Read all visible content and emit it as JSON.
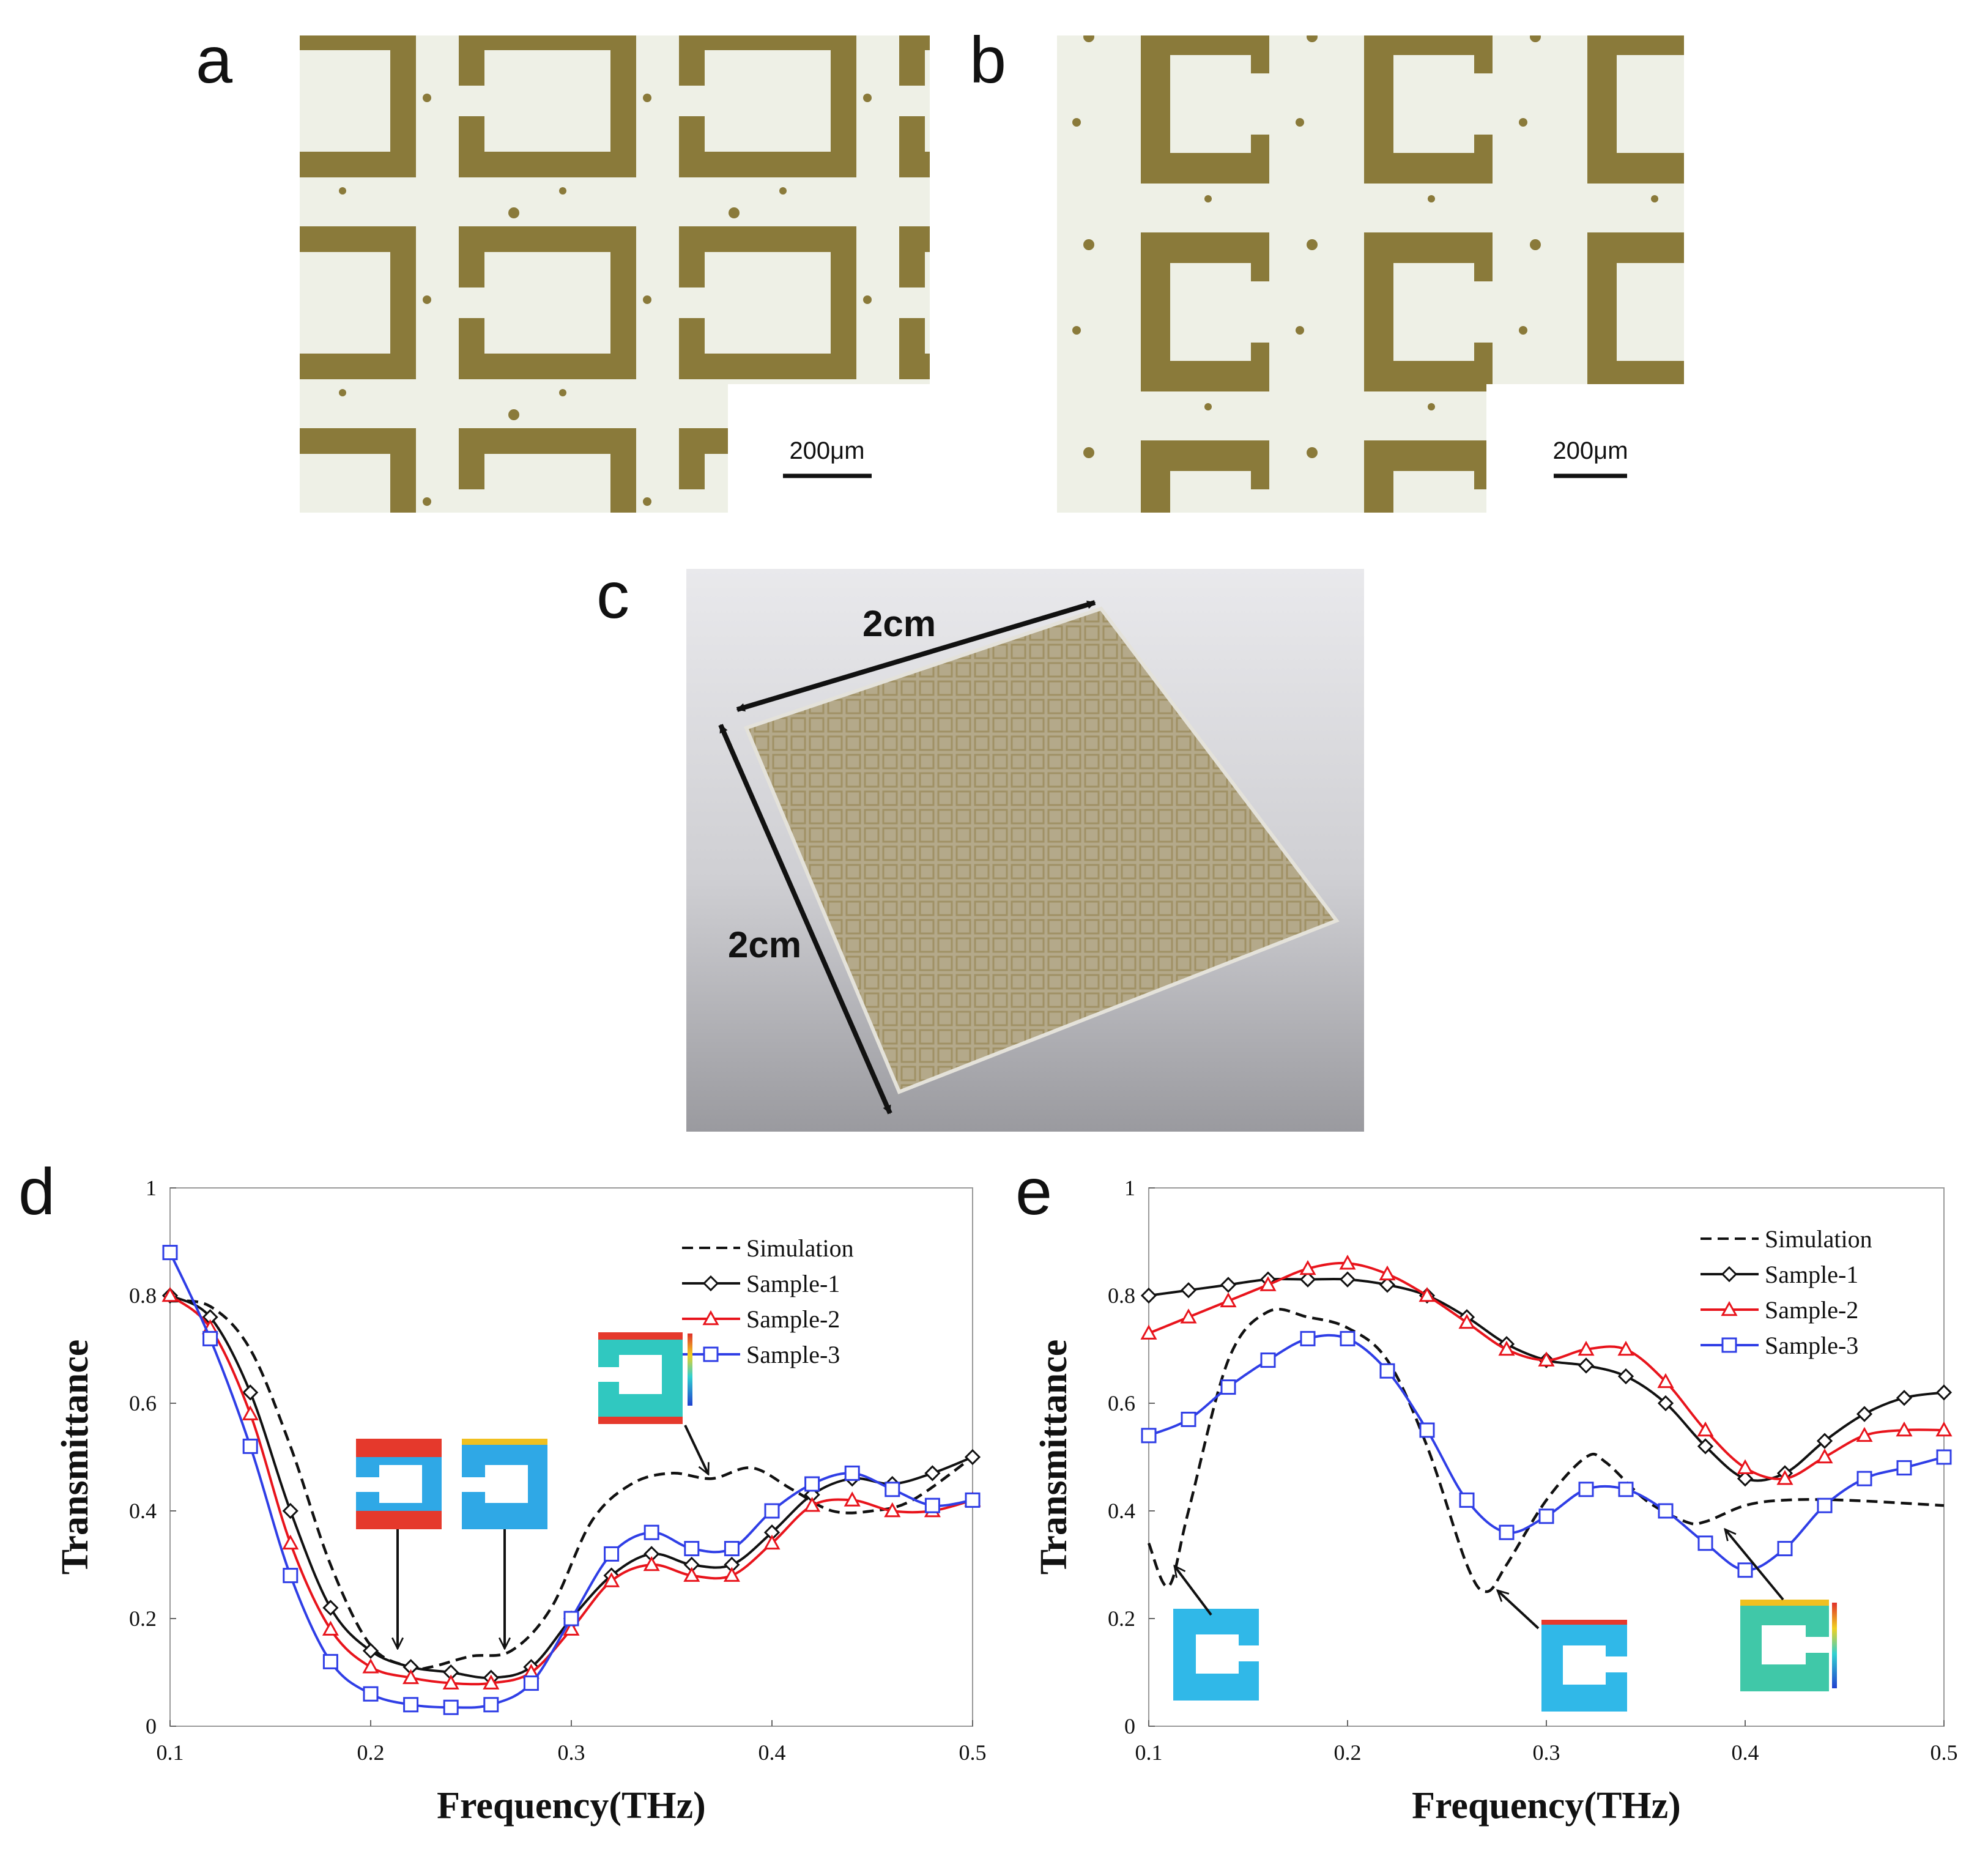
{
  "figure": {
    "panels": {
      "a": {
        "label": "a",
        "scale_bar": "200μm"
      },
      "b": {
        "label": "b",
        "scale_bar": "200μm"
      },
      "c": {
        "label": "c",
        "dim_top": "2cm",
        "dim_side": "2cm"
      },
      "d": {
        "label": "d"
      },
      "e": {
        "label": "e"
      }
    }
  },
  "colors": {
    "simulation": "#111111",
    "sample1": "#111111",
    "sample2": "#e8141c",
    "sample3": "#2f3ee6",
    "metal": "#8a7a3a",
    "substrate": "#eef0e6"
  },
  "chart_data": [
    {
      "panel": "d",
      "type": "line",
      "xlabel": "Frequency(THz)",
      "ylabel": "Transmittance",
      "xlim": [
        0.1,
        0.5
      ],
      "ylim": [
        0,
        1
      ],
      "xticks": [
        "0.1",
        "0.2",
        "0.3",
        "0.4",
        "0.5"
      ],
      "yticks": [
        "0",
        "0.2",
        "0.4",
        "0.6",
        "0.8",
        "1"
      ],
      "legend_position": "top-right",
      "legend": [
        "Simulation",
        "Sample-1",
        "Sample-2",
        "Sample-3"
      ],
      "series": [
        {
          "name": "Simulation",
          "style": "dashed",
          "marker": "none",
          "x": [
            0.1,
            0.12,
            0.14,
            0.16,
            0.18,
            0.2,
            0.22,
            0.23,
            0.25,
            0.27,
            0.29,
            0.31,
            0.33,
            0.35,
            0.37,
            0.39,
            0.41,
            0.43,
            0.45,
            0.47,
            0.5
          ],
          "y": [
            0.79,
            0.78,
            0.7,
            0.52,
            0.3,
            0.15,
            0.11,
            0.11,
            0.13,
            0.14,
            0.22,
            0.38,
            0.45,
            0.47,
            0.46,
            0.48,
            0.44,
            0.4,
            0.4,
            0.42,
            0.5
          ]
        },
        {
          "name": "Sample-1",
          "style": "solid",
          "marker": "diamond",
          "x": [
            0.1,
            0.12,
            0.14,
            0.16,
            0.18,
            0.2,
            0.22,
            0.24,
            0.26,
            0.28,
            0.3,
            0.32,
            0.34,
            0.36,
            0.38,
            0.4,
            0.42,
            0.44,
            0.46,
            0.48,
            0.5
          ],
          "y": [
            0.8,
            0.76,
            0.62,
            0.4,
            0.22,
            0.14,
            0.11,
            0.1,
            0.09,
            0.11,
            0.2,
            0.28,
            0.32,
            0.3,
            0.3,
            0.36,
            0.43,
            0.46,
            0.45,
            0.47,
            0.5
          ]
        },
        {
          "name": "Sample-2",
          "style": "solid",
          "marker": "triangle",
          "x": [
            0.1,
            0.12,
            0.14,
            0.16,
            0.18,
            0.2,
            0.22,
            0.24,
            0.26,
            0.28,
            0.3,
            0.32,
            0.34,
            0.36,
            0.38,
            0.4,
            0.42,
            0.44,
            0.46,
            0.48,
            0.5
          ],
          "y": [
            0.8,
            0.74,
            0.58,
            0.34,
            0.18,
            0.11,
            0.09,
            0.08,
            0.08,
            0.1,
            0.18,
            0.27,
            0.3,
            0.28,
            0.28,
            0.34,
            0.41,
            0.42,
            0.4,
            0.4,
            0.42
          ]
        },
        {
          "name": "Sample-3",
          "style": "solid",
          "marker": "square",
          "x": [
            0.1,
            0.12,
            0.14,
            0.16,
            0.18,
            0.2,
            0.22,
            0.24,
            0.26,
            0.28,
            0.3,
            0.32,
            0.34,
            0.36,
            0.38,
            0.4,
            0.42,
            0.44,
            0.46,
            0.48,
            0.5
          ],
          "y": [
            0.88,
            0.72,
            0.52,
            0.28,
            0.12,
            0.06,
            0.04,
            0.035,
            0.04,
            0.08,
            0.2,
            0.32,
            0.36,
            0.33,
            0.33,
            0.4,
            0.45,
            0.47,
            0.44,
            0.41,
            0.42
          ]
        }
      ]
    },
    {
      "panel": "e",
      "type": "line",
      "xlabel": "Frequency(THz)",
      "ylabel": "Transmittance",
      "xlim": [
        0.1,
        0.5
      ],
      "ylim": [
        0,
        1
      ],
      "xticks": [
        "0.1",
        "0.2",
        "0.3",
        "0.4",
        "0.5"
      ],
      "yticks": [
        "0",
        "0.2",
        "0.4",
        "0.6",
        "0.8",
        "1"
      ],
      "legend_position": "top-right",
      "legend": [
        "Simulation",
        "Sample-1",
        "Sample-2",
        "Sample-3"
      ],
      "series": [
        {
          "name": "Simulation",
          "style": "dashed",
          "marker": "none",
          "x": [
            0.1,
            0.11,
            0.12,
            0.14,
            0.16,
            0.18,
            0.2,
            0.22,
            0.24,
            0.26,
            0.27,
            0.28,
            0.3,
            0.32,
            0.33,
            0.35,
            0.37,
            0.38,
            0.4,
            0.42,
            0.45,
            0.5
          ],
          "y": [
            0.34,
            0.26,
            0.4,
            0.68,
            0.77,
            0.76,
            0.74,
            0.68,
            0.52,
            0.3,
            0.25,
            0.3,
            0.42,
            0.5,
            0.49,
            0.42,
            0.38,
            0.38,
            0.41,
            0.42,
            0.42,
            0.41
          ]
        },
        {
          "name": "Sample-1",
          "style": "solid",
          "marker": "diamond",
          "x": [
            0.1,
            0.12,
            0.14,
            0.16,
            0.18,
            0.2,
            0.22,
            0.24,
            0.26,
            0.28,
            0.3,
            0.32,
            0.34,
            0.36,
            0.38,
            0.4,
            0.42,
            0.44,
            0.46,
            0.48,
            0.5
          ],
          "y": [
            0.8,
            0.81,
            0.82,
            0.83,
            0.83,
            0.83,
            0.82,
            0.8,
            0.76,
            0.71,
            0.68,
            0.67,
            0.65,
            0.6,
            0.52,
            0.46,
            0.47,
            0.53,
            0.58,
            0.61,
            0.62
          ]
        },
        {
          "name": "Sample-2",
          "style": "solid",
          "marker": "triangle",
          "x": [
            0.1,
            0.12,
            0.14,
            0.16,
            0.18,
            0.2,
            0.22,
            0.24,
            0.26,
            0.28,
            0.3,
            0.32,
            0.34,
            0.36,
            0.38,
            0.4,
            0.42,
            0.44,
            0.46,
            0.48,
            0.5
          ],
          "y": [
            0.73,
            0.76,
            0.79,
            0.82,
            0.85,
            0.86,
            0.84,
            0.8,
            0.75,
            0.7,
            0.68,
            0.7,
            0.7,
            0.64,
            0.55,
            0.48,
            0.46,
            0.5,
            0.54,
            0.55,
            0.55
          ]
        },
        {
          "name": "Sample-3",
          "style": "solid",
          "marker": "square",
          "x": [
            0.1,
            0.12,
            0.14,
            0.16,
            0.18,
            0.2,
            0.22,
            0.24,
            0.26,
            0.28,
            0.3,
            0.32,
            0.34,
            0.36,
            0.38,
            0.4,
            0.42,
            0.44,
            0.46,
            0.48,
            0.5
          ],
          "y": [
            0.54,
            0.57,
            0.63,
            0.68,
            0.72,
            0.72,
            0.66,
            0.55,
            0.42,
            0.36,
            0.39,
            0.44,
            0.44,
            0.4,
            0.34,
            0.29,
            0.33,
            0.41,
            0.46,
            0.48,
            0.5
          ]
        }
      ]
    }
  ]
}
